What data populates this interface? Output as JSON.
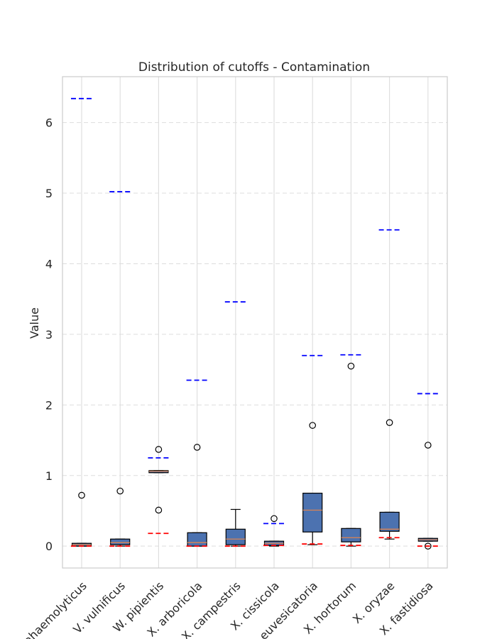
{
  "chart_data": {
    "type": "box",
    "title": "Distribution of cutoffs - Contamination",
    "xlabel": "",
    "ylabel": "Value",
    "ylim": [
      -0.31,
      6.65
    ],
    "yticks": [
      0,
      1,
      2,
      3,
      4,
      5,
      6
    ],
    "grid": true,
    "categories": [
      "V. parahaemolyticus",
      "V. vulnificus",
      "W. pipientis",
      "X. arboricola",
      "X. campestris",
      "X. cissicola",
      "X. euvesicatoria",
      "X. hortorum",
      "X. oryzae",
      "X. fastidiosa"
    ],
    "boxes": [
      {
        "q1": 0.0,
        "median": 0.02,
        "q3": 0.04,
        "whisker_low": 0.0,
        "whisker_high": 0.04,
        "fliers": [
          0.72
        ]
      },
      {
        "q1": 0.02,
        "median": 0.05,
        "q3": 0.1,
        "whisker_low": 0.0,
        "whisker_high": 0.1,
        "fliers": [
          0.78
        ]
      },
      {
        "q1": 1.04,
        "median": 1.06,
        "q3": 1.07,
        "whisker_low": 1.04,
        "whisker_high": 1.07,
        "fliers": [
          1.37,
          0.51
        ]
      },
      {
        "q1": 0.0,
        "median": 0.05,
        "q3": 0.19,
        "whisker_low": 0.0,
        "whisker_high": 0.19,
        "fliers": [
          1.4
        ]
      },
      {
        "q1": 0.02,
        "median": 0.1,
        "q3": 0.24,
        "whisker_low": 0.0,
        "whisker_high": 0.52,
        "fliers": []
      },
      {
        "q1": 0.01,
        "median": 0.04,
        "q3": 0.07,
        "whisker_low": 0.0,
        "whisker_high": 0.07,
        "fliers": [
          0.39
        ]
      },
      {
        "q1": 0.2,
        "median": 0.51,
        "q3": 0.75,
        "whisker_low": 0.02,
        "whisker_high": 0.75,
        "fliers": [
          1.71
        ]
      },
      {
        "q1": 0.06,
        "median": 0.12,
        "q3": 0.25,
        "whisker_low": 0.0,
        "whisker_high": 0.25,
        "fliers": [
          2.55
        ]
      },
      {
        "q1": 0.21,
        "median": 0.24,
        "q3": 0.48,
        "whisker_low": 0.1,
        "whisker_high": 0.48,
        "fliers": [
          1.75
        ]
      },
      {
        "q1": 0.07,
        "median": 0.09,
        "q3": 0.11,
        "whisker_low": 0.07,
        "whisker_high": 0.11,
        "fliers": [
          0.0,
          1.43
        ]
      }
    ],
    "upper_cutoffs": [
      6.34,
      5.02,
      1.25,
      2.35,
      3.46,
      0.32,
      2.7,
      2.71,
      4.48,
      2.16
    ],
    "lower_cutoffs": [
      0.0,
      0.0,
      0.18,
      0.0,
      0.0,
      0.01,
      0.03,
      0.01,
      0.12,
      0.0
    ],
    "colors": {
      "box_fill": "#4c72b0",
      "median": "#dd8452",
      "upper_cutoff": "#0000ff",
      "lower_cutoff": "#ff0000",
      "grid": "#dddddd",
      "spine": "#cccccc",
      "outline": "#000000"
    }
  }
}
